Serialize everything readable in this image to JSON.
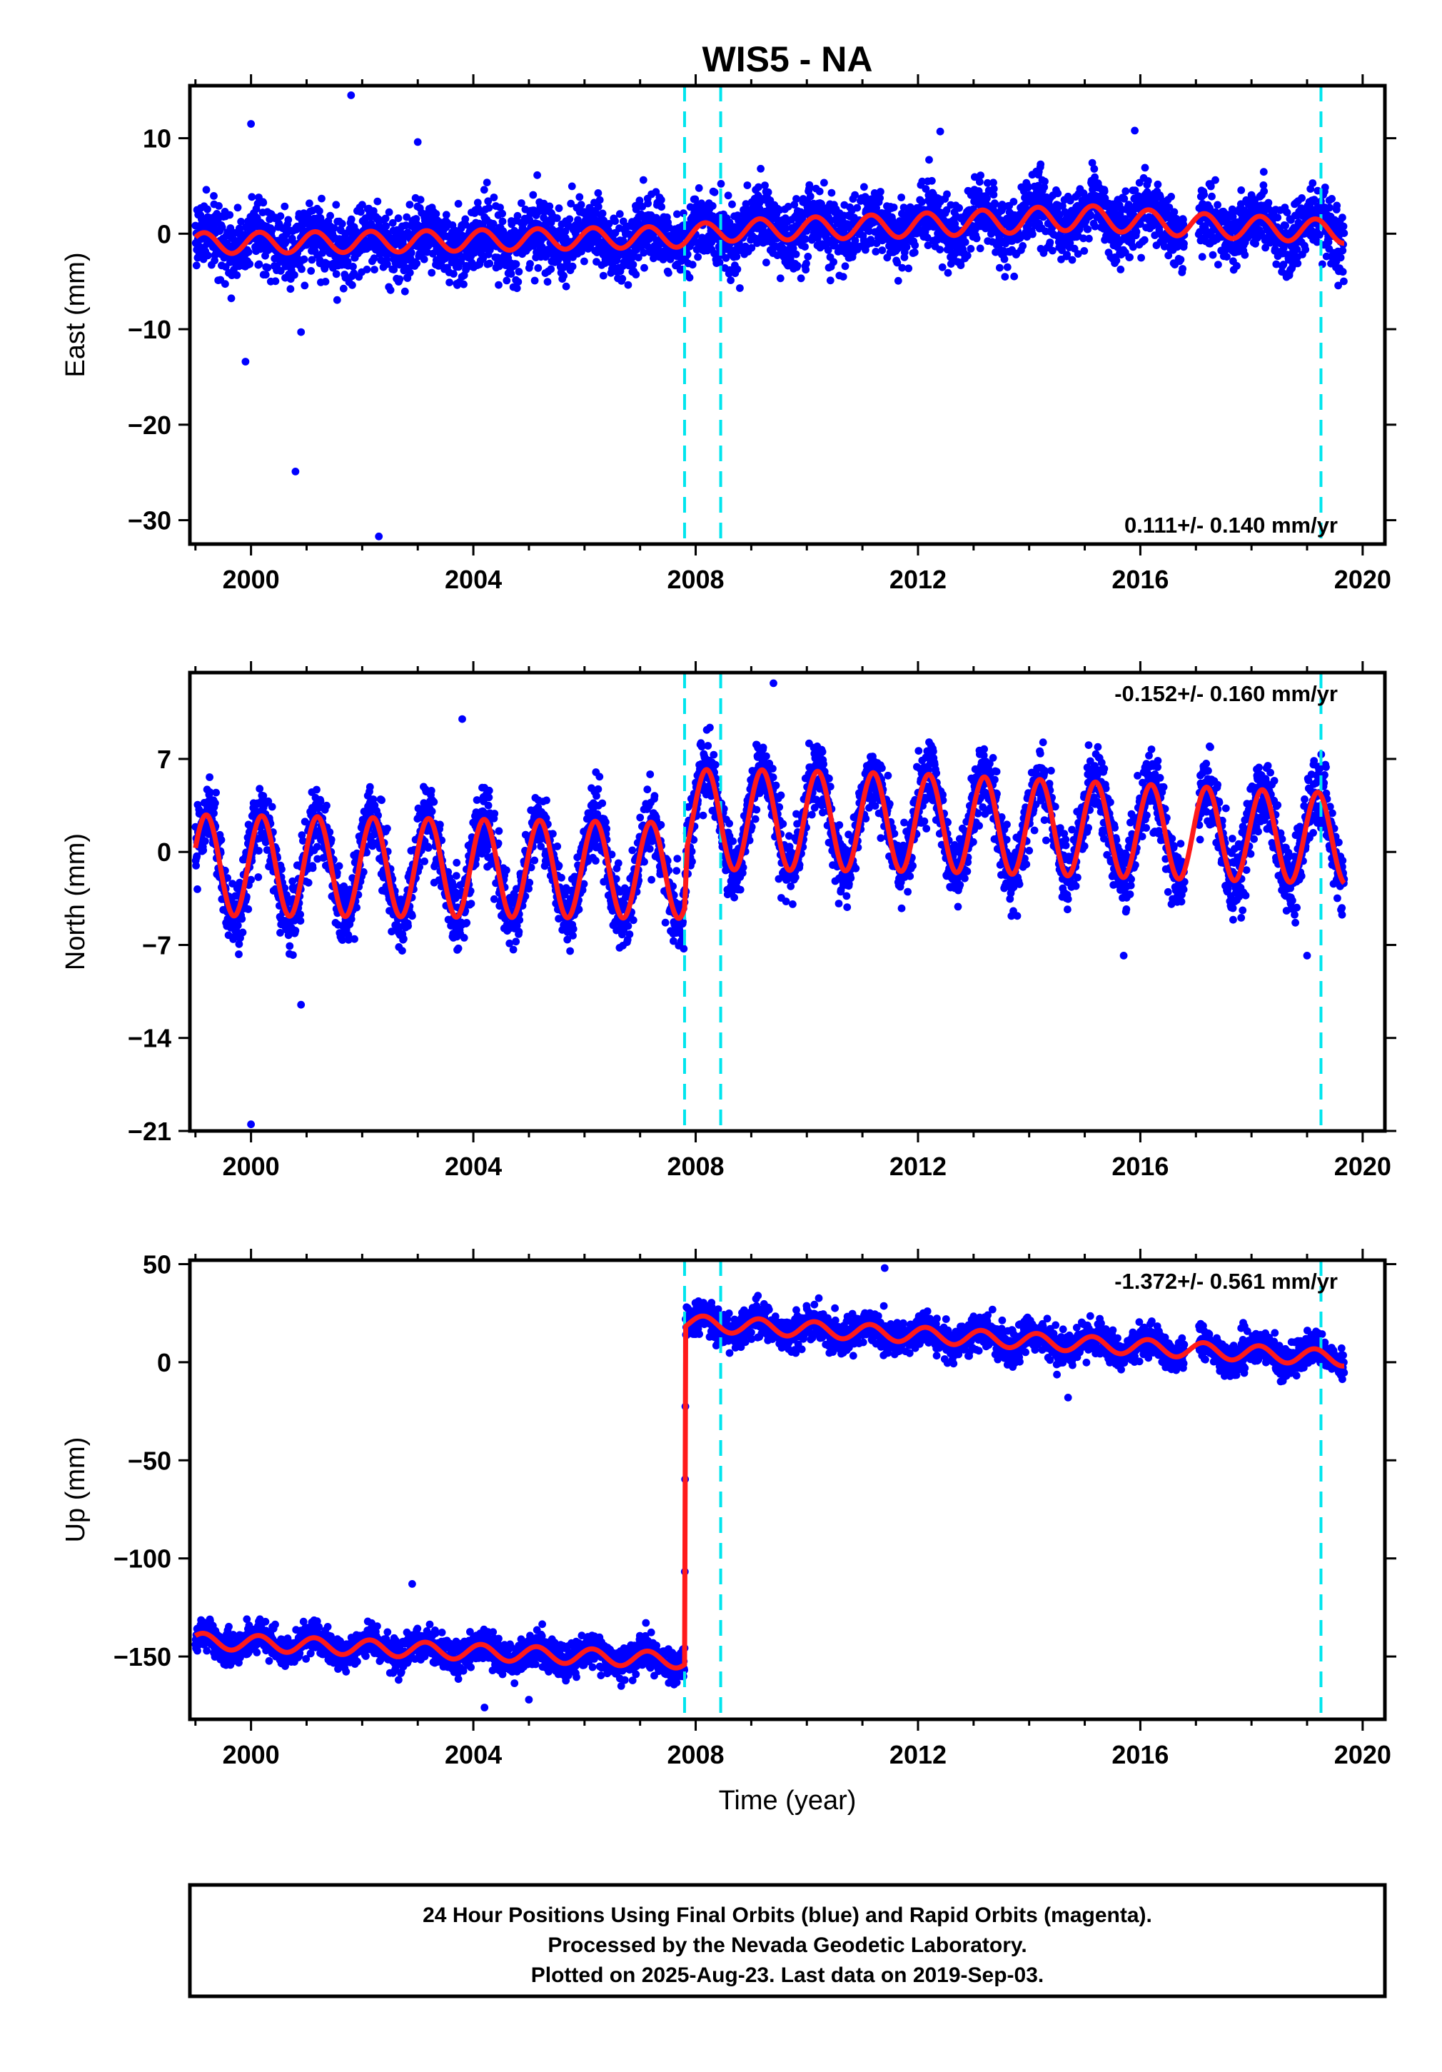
{
  "title": "WIS5 - NA",
  "colors": {
    "points": "#0000ff",
    "model": "#ff1a1a",
    "offsets": "#00e5ee",
    "frame": "#000000"
  },
  "chart_data": [
    {
      "type": "scatter",
      "panel": "east",
      "ylabel": "East (mm)",
      "xlabel": "",
      "xlim": [
        1998.9,
        2020.4
      ],
      "ylim": [
        -32.5,
        15.5
      ],
      "xticks": [
        2000,
        2004,
        2008,
        2012,
        2016,
        2020
      ],
      "yticks": [
        10,
        0,
        -10,
        -20,
        -30
      ],
      "offset_lines": [
        2007.8,
        2008.45,
        2019.25
      ],
      "rate": "0.111+/- 0.140 mm/yr",
      "rate_position": "bottom-right",
      "data_range": [
        1999.0,
        2019.67
      ],
      "gaps": [
        [
          2016.8,
          2017.05
        ]
      ],
      "model": {
        "trend": [
          [
            1999.0,
            -1.0
          ],
          [
            2003.0,
            -0.8
          ],
          [
            2007.8,
            -0.3
          ],
          [
            2008.45,
            0.3
          ],
          [
            2012.0,
            0.9
          ],
          [
            2015.0,
            1.7
          ],
          [
            2017.0,
            0.9
          ],
          [
            2019.67,
            0.2
          ]
        ],
        "annual_amplitude": [
          [
            1999.0,
            1.1
          ],
          [
            2008.0,
            1.1
          ],
          [
            2014.0,
            1.3
          ],
          [
            2019.67,
            1.2
          ]
        ],
        "phase": 0.6,
        "scatter_sd": 1.7
      },
      "outliers": [
        [
          2000.0,
          11.5
        ],
        [
          2001.8,
          14.5
        ],
        [
          2003.0,
          9.6
        ],
        [
          2012.4,
          10.7
        ],
        [
          2015.9,
          10.8
        ],
        [
          1999.9,
          -13.4
        ],
        [
          2000.8,
          -24.9
        ],
        [
          2000.9,
          -10.3
        ],
        [
          2002.3,
          -31.7
        ]
      ]
    },
    {
      "type": "scatter",
      "panel": "north",
      "ylabel": "North (mm)",
      "xlabel": "",
      "xlim": [
        1998.9,
        2020.4
      ],
      "ylim": [
        -21,
        13.5
      ],
      "xticks": [
        2000,
        2004,
        2008,
        2012,
        2016,
        2020
      ],
      "yticks": [
        7,
        0,
        -7,
        -14,
        -21
      ],
      "offset_lines": [
        2007.8,
        2008.45,
        2019.25
      ],
      "rate": "-0.152+/- 0.160 mm/yr",
      "rate_position": "top-right",
      "data_range": [
        1999.0,
        2019.67
      ],
      "gaps": [
        [
          2016.8,
          2017.05
        ]
      ],
      "model": {
        "trend": [
          [
            1999.0,
            -1.0
          ],
          [
            2007.8,
            -1.4
          ],
          [
            2007.85,
            2.5
          ],
          [
            2012.0,
            2.2
          ],
          [
            2019.67,
            1.0
          ]
        ],
        "annual_amplitude": [
          [
            1999.0,
            3.8
          ],
          [
            2007.8,
            3.6
          ],
          [
            2008.45,
            3.8
          ],
          [
            2019.67,
            3.4
          ]
        ],
        "phase": 0.35,
        "scatter_sd": 1.3
      },
      "outliers": [
        [
          2009.4,
          12.7
        ],
        [
          2003.8,
          10.0
        ],
        [
          2000.0,
          -20.5
        ],
        [
          2000.9,
          -11.5
        ],
        [
          2015.7,
          -7.8
        ],
        [
          2019.0,
          -7.8
        ]
      ]
    },
    {
      "type": "scatter",
      "panel": "up",
      "ylabel": "Up (mm)",
      "xlabel": "Time (year)",
      "xlim": [
        1998.9,
        2020.4
      ],
      "ylim": [
        -182,
        52
      ],
      "xticks": [
        2000,
        2004,
        2008,
        2012,
        2016,
        2020
      ],
      "yticks": [
        50,
        0,
        -50,
        -100,
        -150
      ],
      "offset_lines": [
        2007.8,
        2008.45,
        2019.25
      ],
      "rate": "-1.372+/- 0.561 mm/yr",
      "rate_position": "top-right",
      "data_range": [
        1999.0,
        2019.67
      ],
      "gaps": [
        [
          2016.8,
          2017.05
        ]
      ],
      "model": {
        "trend": [
          [
            1999.0,
            -142.0
          ],
          [
            2007.8,
            -152.0
          ],
          [
            2007.82,
            20.0
          ],
          [
            2012.0,
            14.0
          ],
          [
            2019.67,
            2.0
          ]
        ],
        "annual_amplitude": [
          [
            1999.0,
            4.0
          ],
          [
            2019.67,
            4.0
          ]
        ],
        "phase": 0.7,
        "scatter_sd": 4.2
      },
      "outliers": [
        [
          2002.9,
          -113.0
        ],
        [
          2011.4,
          48.0
        ],
        [
          2005.0,
          -172.0
        ],
        [
          2004.2,
          -176.0
        ],
        [
          2014.7,
          -18.0
        ]
      ]
    }
  ],
  "footer": {
    "line1": "24 Hour Positions Using Final Orbits (blue) and Rapid Orbits (magenta).",
    "line2": "Processed by the Nevada Geodetic Laboratory.",
    "line3": "Plotted on 2025-Aug-23. Last data on 2019-Sep-03."
  }
}
